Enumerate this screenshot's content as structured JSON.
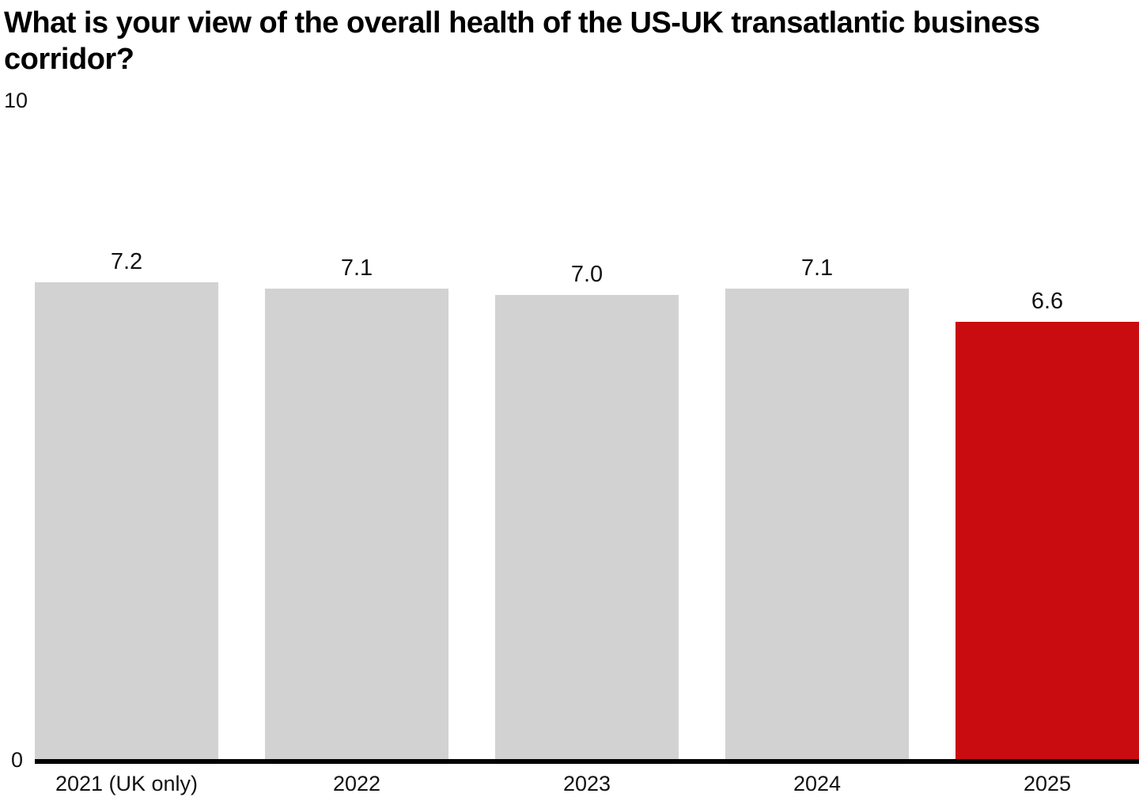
{
  "title": "What is your view of the overall health of the US-UK transatlantic business corridor?",
  "chart_data": {
    "type": "bar",
    "title": "What is your view of the overall health of the US-UK transatlantic business corridor?",
    "categories": [
      "2021 (UK only)",
      "2022",
      "2023",
      "2024",
      "2025"
    ],
    "values": [
      7.2,
      7.1,
      7.0,
      7.1,
      6.6
    ],
    "value_labels": [
      "7.2",
      "7.1",
      "7.0",
      "7.1",
      "6.6"
    ],
    "bar_colors": [
      "#d2d2d2",
      "#d2d2d2",
      "#d2d2d2",
      "#d2d2d2",
      "#c90c0f"
    ],
    "xlabel": "",
    "ylabel": "",
    "ylim": [
      0,
      10
    ],
    "y_axis_top_label": "10",
    "y_axis_bottom_label": "0",
    "grid": false,
    "legend": false
  },
  "colors": {
    "bar_default": "#d2d2d2",
    "bar_highlight": "#c90c0f",
    "axis": "#000000",
    "background": "#ffffff",
    "text": "#000000"
  }
}
